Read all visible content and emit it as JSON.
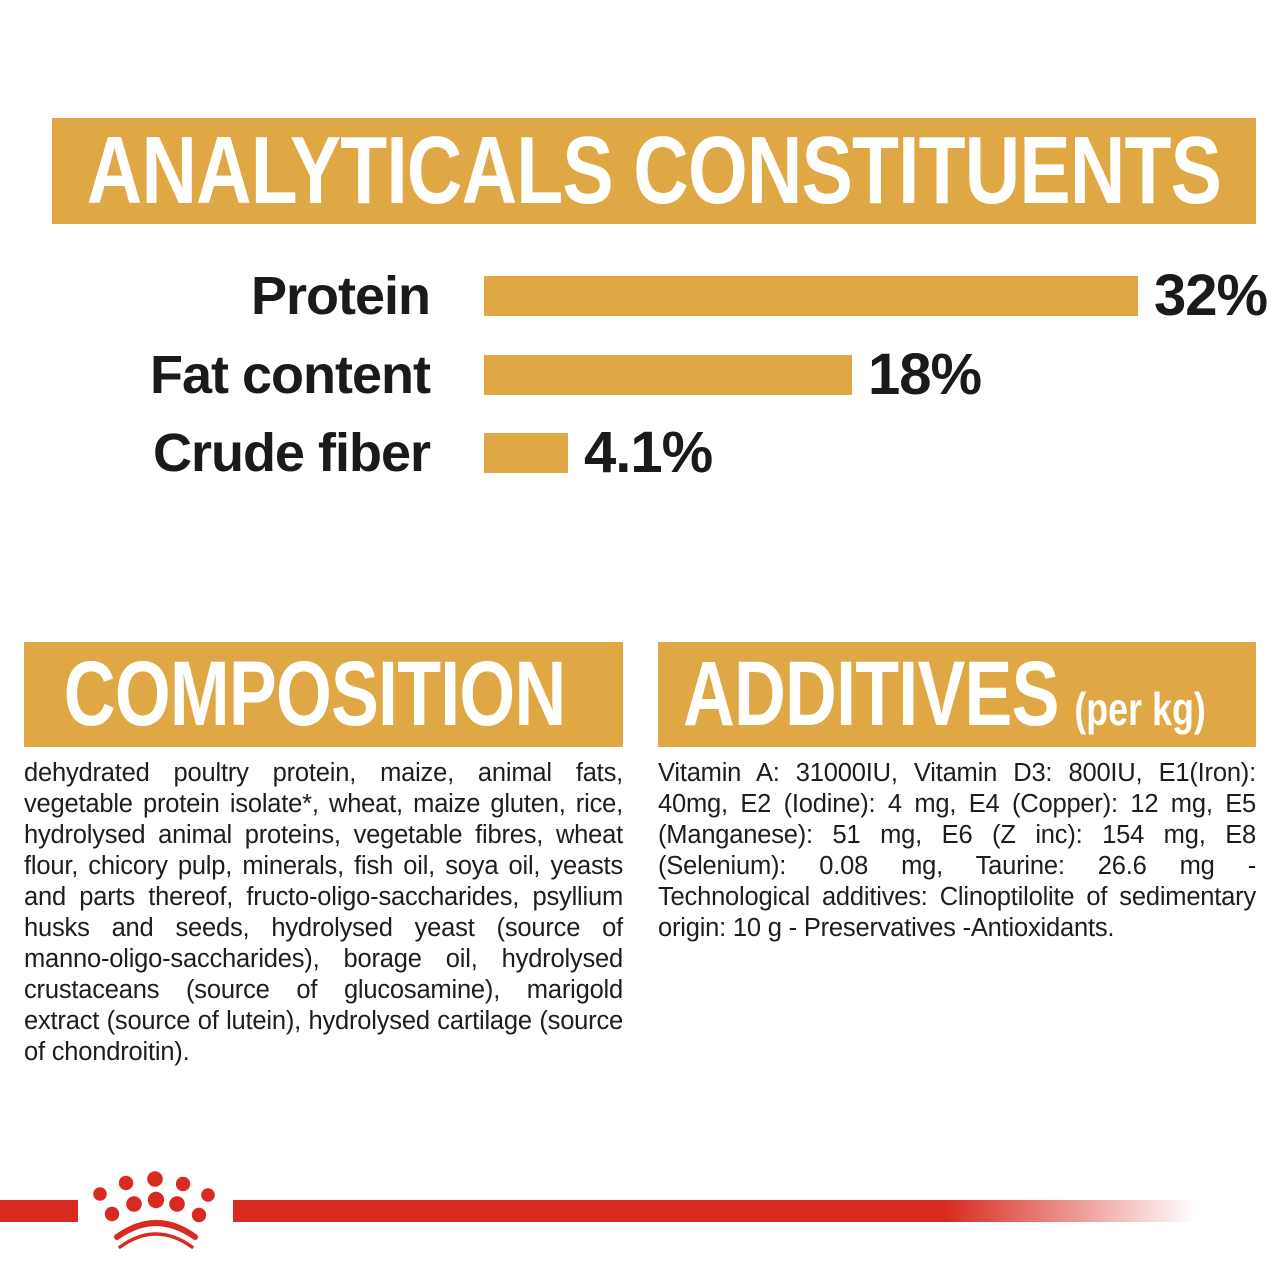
{
  "colors": {
    "gold": "#DFA844",
    "red": "#D92A21",
    "text": "#1D1D1B",
    "banner_text": "#FFFFFF"
  },
  "analyticals": {
    "title": "ANALYTICALS CONSTITUENTS"
  },
  "chart_data": {
    "type": "bar",
    "orientation": "horizontal",
    "title": "ANALYTICALS CONSTITUENTS",
    "categories": [
      "Protein",
      "Fat content",
      "Crude fiber"
    ],
    "values": [
      32,
      18,
      4.1
    ],
    "value_labels": [
      "32%",
      "18%",
      "4.1%"
    ],
    "unit": "%",
    "xlim": [
      0,
      32
    ],
    "grid": false,
    "legend": false,
    "bar_color": "#DFA844"
  },
  "composition": {
    "title": "COMPOSITION",
    "body": "dehydrated poultry protein, maize, animal fats, vegetable protein isolate*, wheat, maize gluten, rice, hydrolysed animal proteins, vegetable fibres, wheat flour, chicory pulp, minerals, fish oil, soya oil, yeasts and parts thereof, fructo-oligo-saccharides, psyllium husks and seeds, hydrolysed yeast (source of manno-oligo-saccharides), borage oil, hydrolysed crustaceans (source of glucosamine), marigold extract (source of lutein), hydrolysed cartilage (source of chondroitin)."
  },
  "additives": {
    "title": "ADDITIVES",
    "unit_note": "(per kg)",
    "body": "Vitamin A: 31000IU, Vitamin D3: 800IU, E1(Iron): 40mg, E2 (Iodine): 4 mg, E4 (Copper): 12 mg, E5 (Manganese): 51 mg, E6 (Z inc): 154 mg, E8 (Selenium): 0.08 mg, Taurine: 26.6 mg - Technological additives: Clinoptilolite of sedimentary origin: 10 g - Preservatives -Antioxidants."
  },
  "footer": {
    "logo": "royal-canin-crown"
  }
}
